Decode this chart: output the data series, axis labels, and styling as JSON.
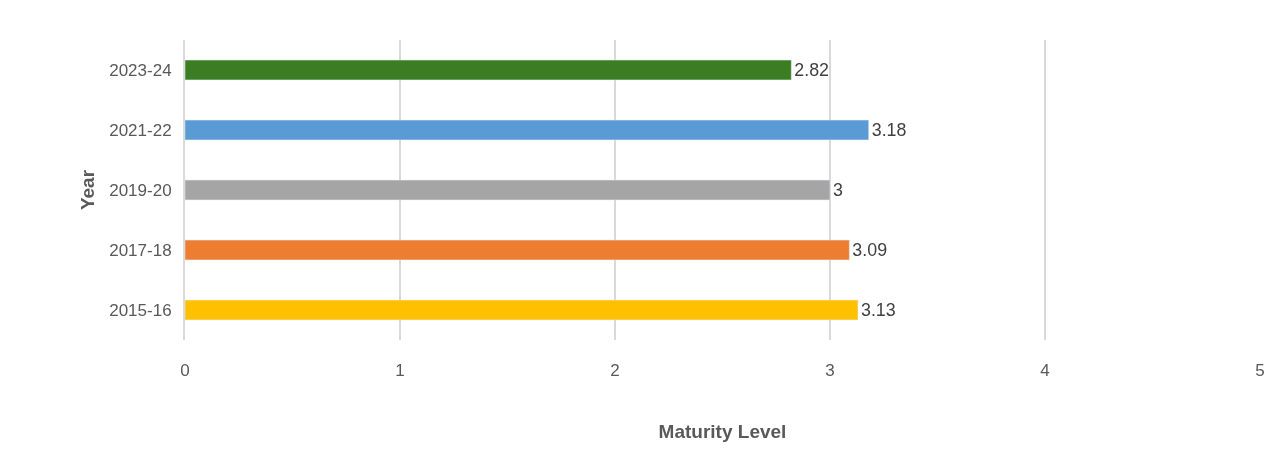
{
  "chart_data": {
    "type": "bar",
    "orientation": "horizontal",
    "xlabel": "Maturity Level",
    "ylabel": "Year",
    "categories": [
      "2023-24",
      "2021-22",
      "2019-20",
      "2017-18",
      "2015-16"
    ],
    "values": [
      2.82,
      3.18,
      3,
      3.09,
      3.13
    ],
    "colors": [
      "#3b7d23",
      "#5b9bd5",
      "#a5a5a5",
      "#ed7d31",
      "#ffc000"
    ],
    "xlim": [
      0,
      5
    ],
    "xticks": [
      0,
      1,
      2,
      3,
      4,
      5
    ],
    "grid": "x",
    "data_labels": true,
    "legend": false
  }
}
